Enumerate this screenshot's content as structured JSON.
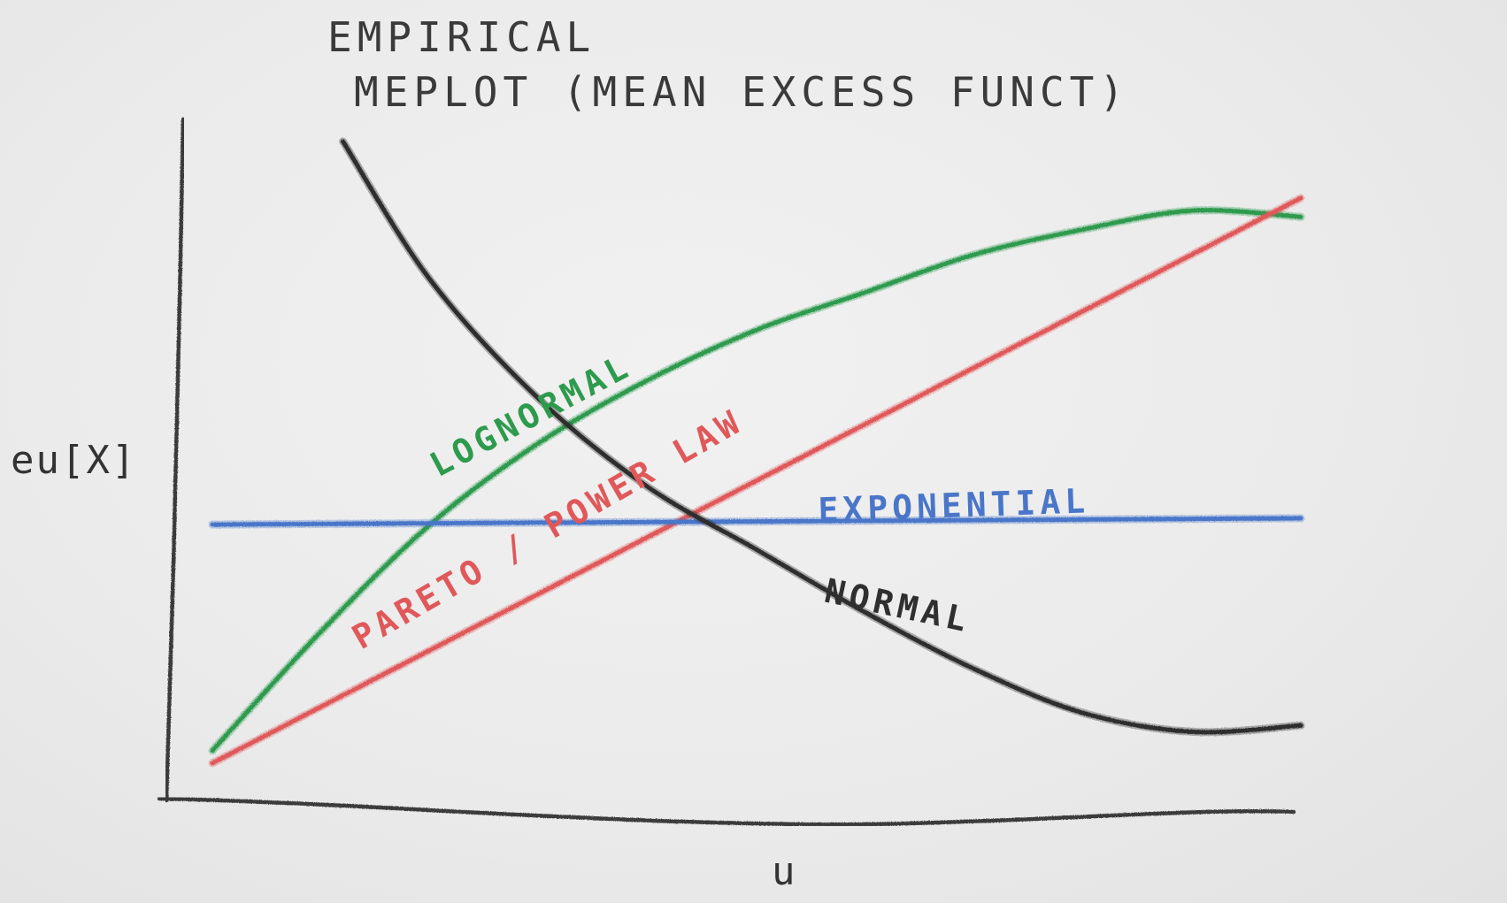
{
  "chart_data": {
    "type": "line",
    "title": "EMPIRICAL\nMEPLOT (MEAN EXCESS FUNCT)",
    "title_lines": [
      "EMPIRICAL",
      "MEPLOT (MEAN EXCESS FUNCT)"
    ],
    "xlabel": "u",
    "ylabel": "eu[X]",
    "x": [
      0,
      1,
      2,
      3,
      4,
      5,
      6,
      7,
      8,
      9,
      10
    ],
    "xlim": [
      0,
      10
    ],
    "ylim": [
      0,
      10
    ],
    "grid": false,
    "legend": "none",
    "series": [
      {
        "name": "LOGNORMAL",
        "color": "#2e9a4e",
        "x": [
          0,
          1,
          2,
          3,
          4,
          5,
          6,
          7,
          8,
          9,
          10
        ],
        "values": [
          0.3,
          2.2,
          3.9,
          5.2,
          6.2,
          7.0,
          7.6,
          8.2,
          8.6,
          8.9,
          8.8
        ]
      },
      {
        "name": "PARETO / POWER LAW",
        "color": "#e0585a",
        "x": [
          0,
          10
        ],
        "values": [
          0.1,
          9.1
        ]
      },
      {
        "name": "EXPONENTIAL",
        "color": "#4a76c9",
        "x": [
          0,
          10
        ],
        "values": [
          3.9,
          4.0
        ]
      },
      {
        "name": "NORMAL",
        "color": "#2f2f2f",
        "x": [
          1.2,
          2,
          3,
          4,
          5,
          6,
          7,
          8,
          9,
          10
        ],
        "values": [
          10.0,
          7.8,
          5.9,
          4.5,
          3.5,
          2.5,
          1.6,
          0.9,
          0.6,
          0.7
        ]
      }
    ]
  },
  "annotations": {
    "lognormal": "LOGNORMAL",
    "pareto": "PARETO / POWER LAW",
    "exponential": "EXPONENTIAL",
    "normal": "NORMAL"
  }
}
